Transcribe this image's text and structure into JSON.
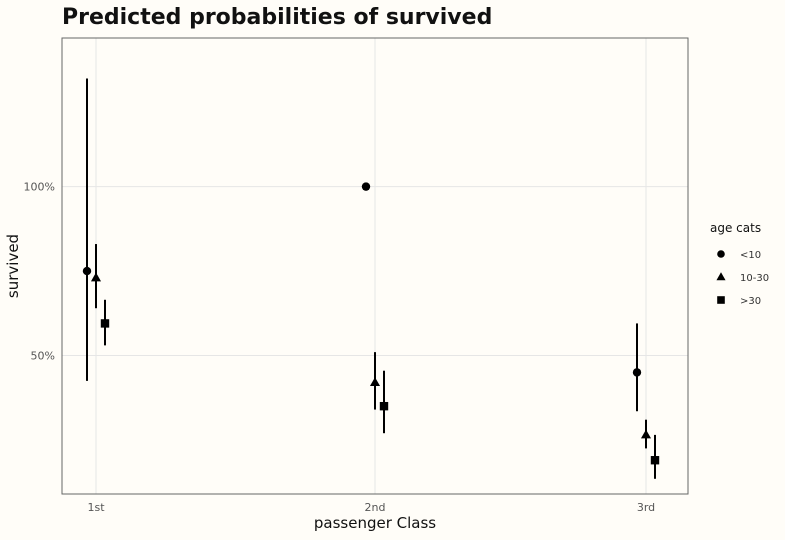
{
  "chart_data": {
    "type": "scatter",
    "title": "Predicted probabilities of survived",
    "xlabel": "passenger Class",
    "ylabel": "survived",
    "categories": [
      "1st",
      "2nd",
      "3rd"
    ],
    "ylim": [
      0.09,
      1.44
    ],
    "yticks": [
      {
        "value": 0.5,
        "label": "50%"
      },
      {
        "value": 1.0,
        "label": "100%"
      }
    ],
    "grid": true,
    "legend": {
      "title": "age cats",
      "position": "right"
    },
    "series": [
      {
        "name": "<10",
        "shape": "circle",
        "points": [
          {
            "category": "1st",
            "y": 0.75,
            "low": 0.425,
            "high": 1.32
          },
          {
            "category": "2nd",
            "y": 1.0,
            "low": null,
            "high": null
          },
          {
            "category": "3rd",
            "y": 0.45,
            "low": 0.335,
            "high": 0.595
          }
        ]
      },
      {
        "name": "10-30",
        "shape": "triangle",
        "points": [
          {
            "category": "1st",
            "y": 0.73,
            "low": 0.64,
            "high": 0.83
          },
          {
            "category": "2nd",
            "y": 0.42,
            "low": 0.34,
            "high": 0.51
          },
          {
            "category": "3rd",
            "y": 0.265,
            "low": 0.225,
            "high": 0.31
          }
        ]
      },
      {
        "name": ">30",
        "shape": "square",
        "points": [
          {
            "category": "1st",
            "y": 0.595,
            "low": 0.53,
            "high": 0.665
          },
          {
            "category": "2nd",
            "y": 0.35,
            "low": 0.27,
            "high": 0.455
          },
          {
            "category": "3rd",
            "y": 0.19,
            "low": 0.135,
            "high": 0.265
          }
        ]
      }
    ]
  }
}
